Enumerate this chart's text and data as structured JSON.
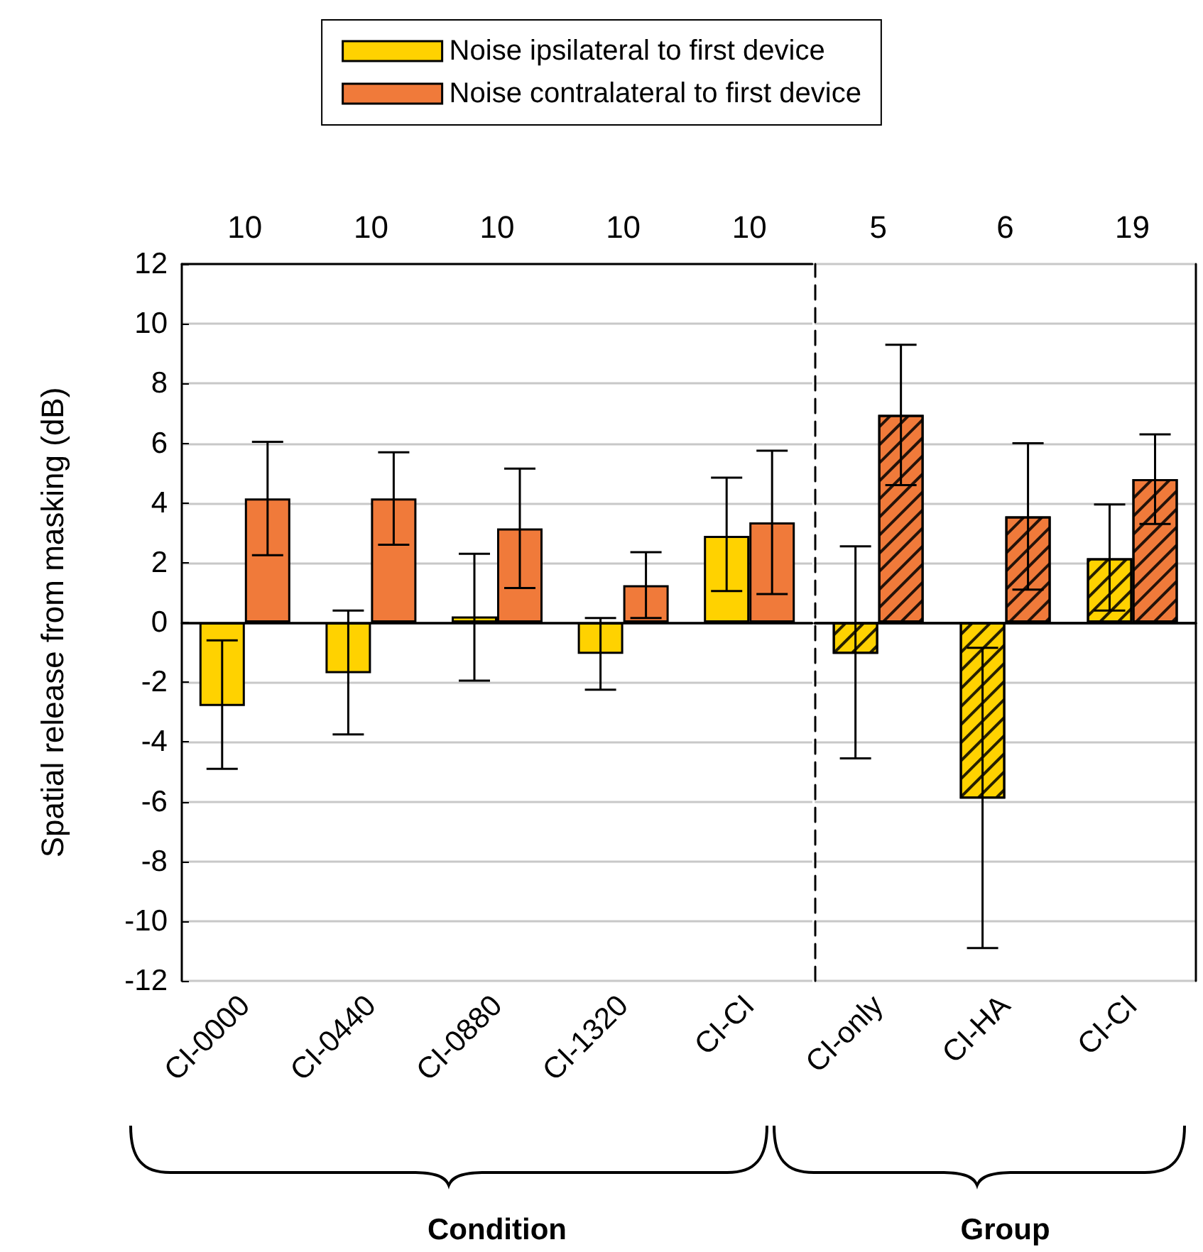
{
  "chart_data": [
    {
      "type": "bar",
      "xlabel": "Condition",
      "ylabel": "Spatial release from masking (dB)",
      "categories": [
        "CI-0000",
        "CI-0440",
        "CI-0880",
        "CI-1320",
        "CI-CI"
      ],
      "series": [
        {
          "name": "Noise ipsilateral to first device",
          "color": "#ffd200",
          "values": [
            -2.8,
            -1.7,
            0.2,
            -1.05,
            2.9
          ],
          "errors": [
            [
              -4.9,
              -0.6
            ],
            [
              -3.75,
              0.4
            ],
            [
              -1.95,
              2.3
            ],
            [
              -2.25,
              0.15
            ],
            [
              1.05,
              4.85
            ]
          ]
        },
        {
          "name": "Noise contralateral to first device",
          "color": "#f07a3a",
          "values": [
            4.15,
            4.15,
            3.15,
            1.25,
            3.35
          ],
          "errors": [
            [
              2.25,
              6.05
            ],
            [
              2.6,
              5.7
            ],
            [
              1.15,
              5.15
            ],
            [
              0.15,
              2.35
            ],
            [
              0.95,
              5.75
            ]
          ]
        }
      ],
      "ylim": [
        -12,
        12
      ],
      "yticks": [
        -12,
        -10,
        -8,
        -6,
        -4,
        -2,
        0,
        2,
        4,
        6,
        8,
        10,
        12
      ],
      "grid": "y",
      "legend": "top",
      "annotations": [
        "10",
        "10",
        "10",
        "10",
        "10"
      ]
    },
    {
      "type": "bar",
      "xlabel": "Group",
      "categories": [
        "CI-only",
        "CI-HA",
        "CI-CI"
      ],
      "series": [
        {
          "color": "#ffd200",
          "values": [
            -1.05,
            -5.9,
            2.15
          ],
          "errors": [
            [
              -4.55,
              2.55
            ],
            [
              -10.9,
              -0.85
            ],
            [
              0.4,
              3.95
            ]
          ]
        },
        {
          "color": "#f07a3a",
          "values": [
            6.95,
            3.55,
            4.8
          ],
          "errors": [
            [
              4.6,
              9.3
            ],
            [
              1.1,
              6.0
            ],
            [
              3.3,
              6.3
            ]
          ]
        }
      ],
      "ylim": [
        -12,
        12
      ],
      "yticks": [
        -12,
        -10,
        -8,
        -6,
        -4,
        -2,
        0,
        2,
        4,
        6,
        8,
        10,
        12
      ],
      "grid": "y",
      "tick_labels": "x",
      "annotations": [
        "5",
        "6",
        "19"
      ]
    }
  ]
}
